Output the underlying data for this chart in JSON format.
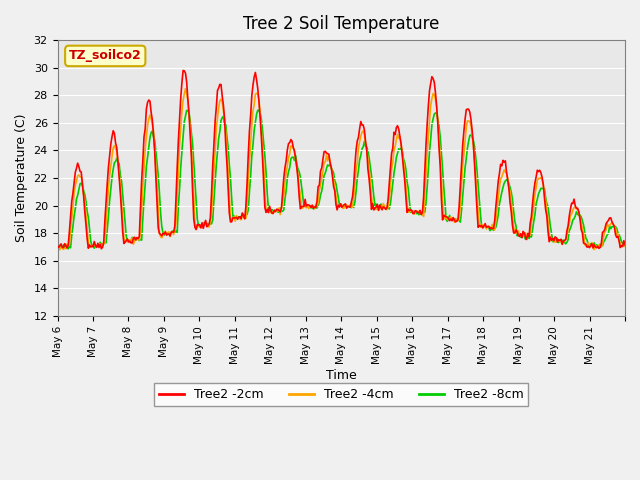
{
  "title": "Tree 2 Soil Temperature",
  "xlabel": "Time",
  "ylabel": "Soil Temperature (C)",
  "ylim": [
    12,
    32
  ],
  "yticks": [
    12,
    14,
    16,
    18,
    20,
    22,
    24,
    26,
    28,
    30,
    32
  ],
  "background_color": "#e8e8e8",
  "plot_bg_color": "#e8e8e8",
  "legend_labels": [
    "Tree2 -2cm",
    "Tree2 -4cm",
    "Tree2 -8cm"
  ],
  "legend_colors": [
    "#ff0000",
    "#ffa500",
    "#00cc00"
  ],
  "annotation_text": "TZ_soilco2",
  "annotation_color": "#cc0000",
  "annotation_bg": "#ffffcc",
  "annotation_border": "#ccaa00",
  "line_width": 1.2,
  "xtick_positions": [
    0,
    1,
    2,
    3,
    4,
    5,
    6,
    7,
    8,
    9,
    10,
    11,
    12,
    13,
    14,
    15,
    16
  ],
  "xtick_labels": [
    "May 6",
    "May 7",
    "May 8",
    "May 9",
    "May 10",
    "May 11",
    "May 12",
    "May 13",
    "May 14",
    "May 15",
    "May 16",
    "May 17",
    "May 18",
    "May 19",
    "May 20",
    "May 21",
    ""
  ],
  "num_points": 480,
  "peak_heights": [
    6,
    8,
    10,
    11.5,
    10,
    10,
    5,
    4,
    6,
    6,
    10,
    8.5,
    5,
    5,
    3,
    2
  ],
  "base_mean": 18.5,
  "base_amp": 1.5,
  "xlim": [
    0,
    16
  ]
}
